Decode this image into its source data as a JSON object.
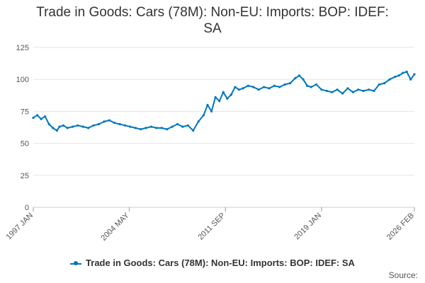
{
  "title_line1": "Trade in Goods: Cars (78M): Non-EU: Imports: BOP: IDEF:",
  "title_line2": "SA",
  "source_label": "Source:",
  "series_color": "#0077bb",
  "chart_data": {
    "type": "line",
    "title": "Trade in Goods: Cars (78M): Non-EU: Imports: BOP: IDEF: SA",
    "xlabel": "",
    "ylabel": "",
    "ylim": [
      0,
      125
    ],
    "yticks": [
      0,
      25,
      50,
      75,
      100,
      125
    ],
    "xlim": [
      1997.0,
      2026.083
    ],
    "xticks": [
      {
        "value": 1997.0,
        "label": "1997 JAN"
      },
      {
        "value": 2004.333,
        "label": "2004 MAY"
      },
      {
        "value": 2011.667,
        "label": "2011 SEP"
      },
      {
        "value": 2019.0,
        "label": "2019 JAN"
      },
      {
        "value": 2026.083,
        "label": "2026 FEB"
      }
    ],
    "grid": true,
    "legend": "bottom-center",
    "series": [
      {
        "name": "Trade in Goods: Cars (78M): Non-EU: Imports: BOP: IDEF: SA",
        "x": [
          1997.0,
          1997.3,
          1997.6,
          1997.9,
          1998.2,
          1998.5,
          1998.8,
          1999.0,
          1999.3,
          1999.6,
          2000.0,
          2000.4,
          2000.8,
          2001.2,
          2001.6,
          2002.0,
          2002.4,
          2002.8,
          2003.2,
          2003.6,
          2004.0,
          2004.4,
          2004.8,
          2005.2,
          2005.6,
          2006.0,
          2006.4,
          2006.8,
          2007.2,
          2007.6,
          2008.0,
          2008.4,
          2008.8,
          2009.2,
          2009.6,
          2010.0,
          2010.3,
          2010.6,
          2010.9,
          2011.2,
          2011.5,
          2011.8,
          2012.1,
          2012.4,
          2012.7,
          2013.0,
          2013.4,
          2013.8,
          2014.2,
          2014.6,
          2015.0,
          2015.4,
          2015.8,
          2016.2,
          2016.6,
          2017.0,
          2017.3,
          2017.6,
          2017.9,
          2018.2,
          2018.6,
          2019.0,
          2019.4,
          2019.8,
          2020.2,
          2020.6,
          2021.0,
          2021.4,
          2021.8,
          2022.2,
          2022.6,
          2023.0,
          2023.4,
          2023.8,
          2024.2,
          2024.6,
          2024.9,
          2025.2,
          2025.5,
          2025.8,
          2026.083
        ],
        "values": [
          70,
          72,
          69,
          71,
          65,
          62,
          60,
          63,
          64,
          62,
          63,
          64,
          63,
          62,
          64,
          65,
          67,
          68,
          66,
          65,
          64,
          63,
          62,
          61,
          62,
          63,
          62,
          62,
          61,
          63,
          65,
          63,
          64,
          60,
          67,
          72,
          80,
          75,
          86,
          83,
          90,
          85,
          88,
          94,
          92,
          93,
          95,
          94,
          92,
          94,
          93,
          95,
          94,
          96,
          97,
          101,
          103,
          100,
          95,
          94,
          96,
          92,
          91,
          90,
          92,
          89,
          93,
          90,
          92,
          91,
          92,
          91,
          96,
          97,
          100,
          102,
          103,
          105,
          106,
          100,
          104
        ]
      }
    ]
  }
}
